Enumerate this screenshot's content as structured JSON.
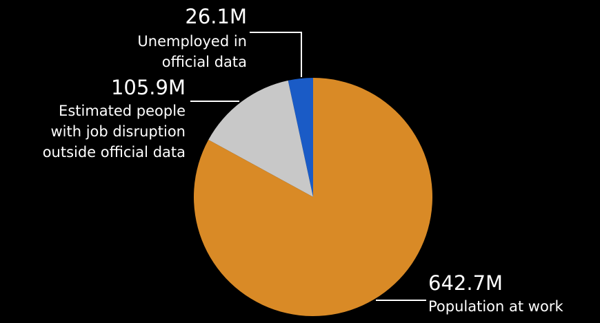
{
  "chart_data": {
    "type": "pie",
    "slices": [
      {
        "value": 26.1,
        "display": "26.1M",
        "label": [
          "Unemployed in",
          "official data"
        ],
        "color": "#1a5bc6"
      },
      {
        "value": 105.9,
        "display": "105.9M",
        "label": [
          "Estimated people",
          "with job disruption",
          "outside official data"
        ],
        "color": "#c8c8c8"
      },
      {
        "value": 642.7,
        "display": "642.7M",
        "label": [
          "Population at work"
        ],
        "color": "#d98a26"
      }
    ],
    "unit": "M",
    "start": "12 o'clock",
    "direction": "counterclockwise",
    "background": "#000000"
  }
}
